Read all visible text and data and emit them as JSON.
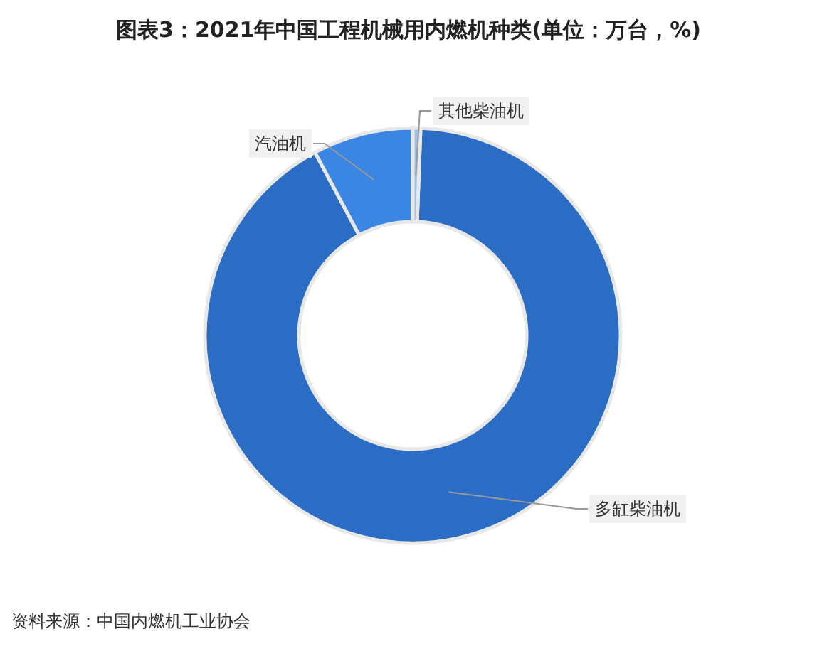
{
  "chart_data": {
    "type": "donut",
    "title": "图表3：2021年中国工程机械用内燃机种类(单位：万台，%)",
    "categories": [
      "多缸柴油机",
      "汽油机",
      "其他柴油机"
    ],
    "values": [
      91.6,
      7.8,
      0.6
    ],
    "colors": [
      "#2b6cc4",
      "#3a86e2",
      "#9fc0ea"
    ],
    "legend": false,
    "annotations": [
      "资料来源：中国内燃机工业协会"
    ]
  }
}
